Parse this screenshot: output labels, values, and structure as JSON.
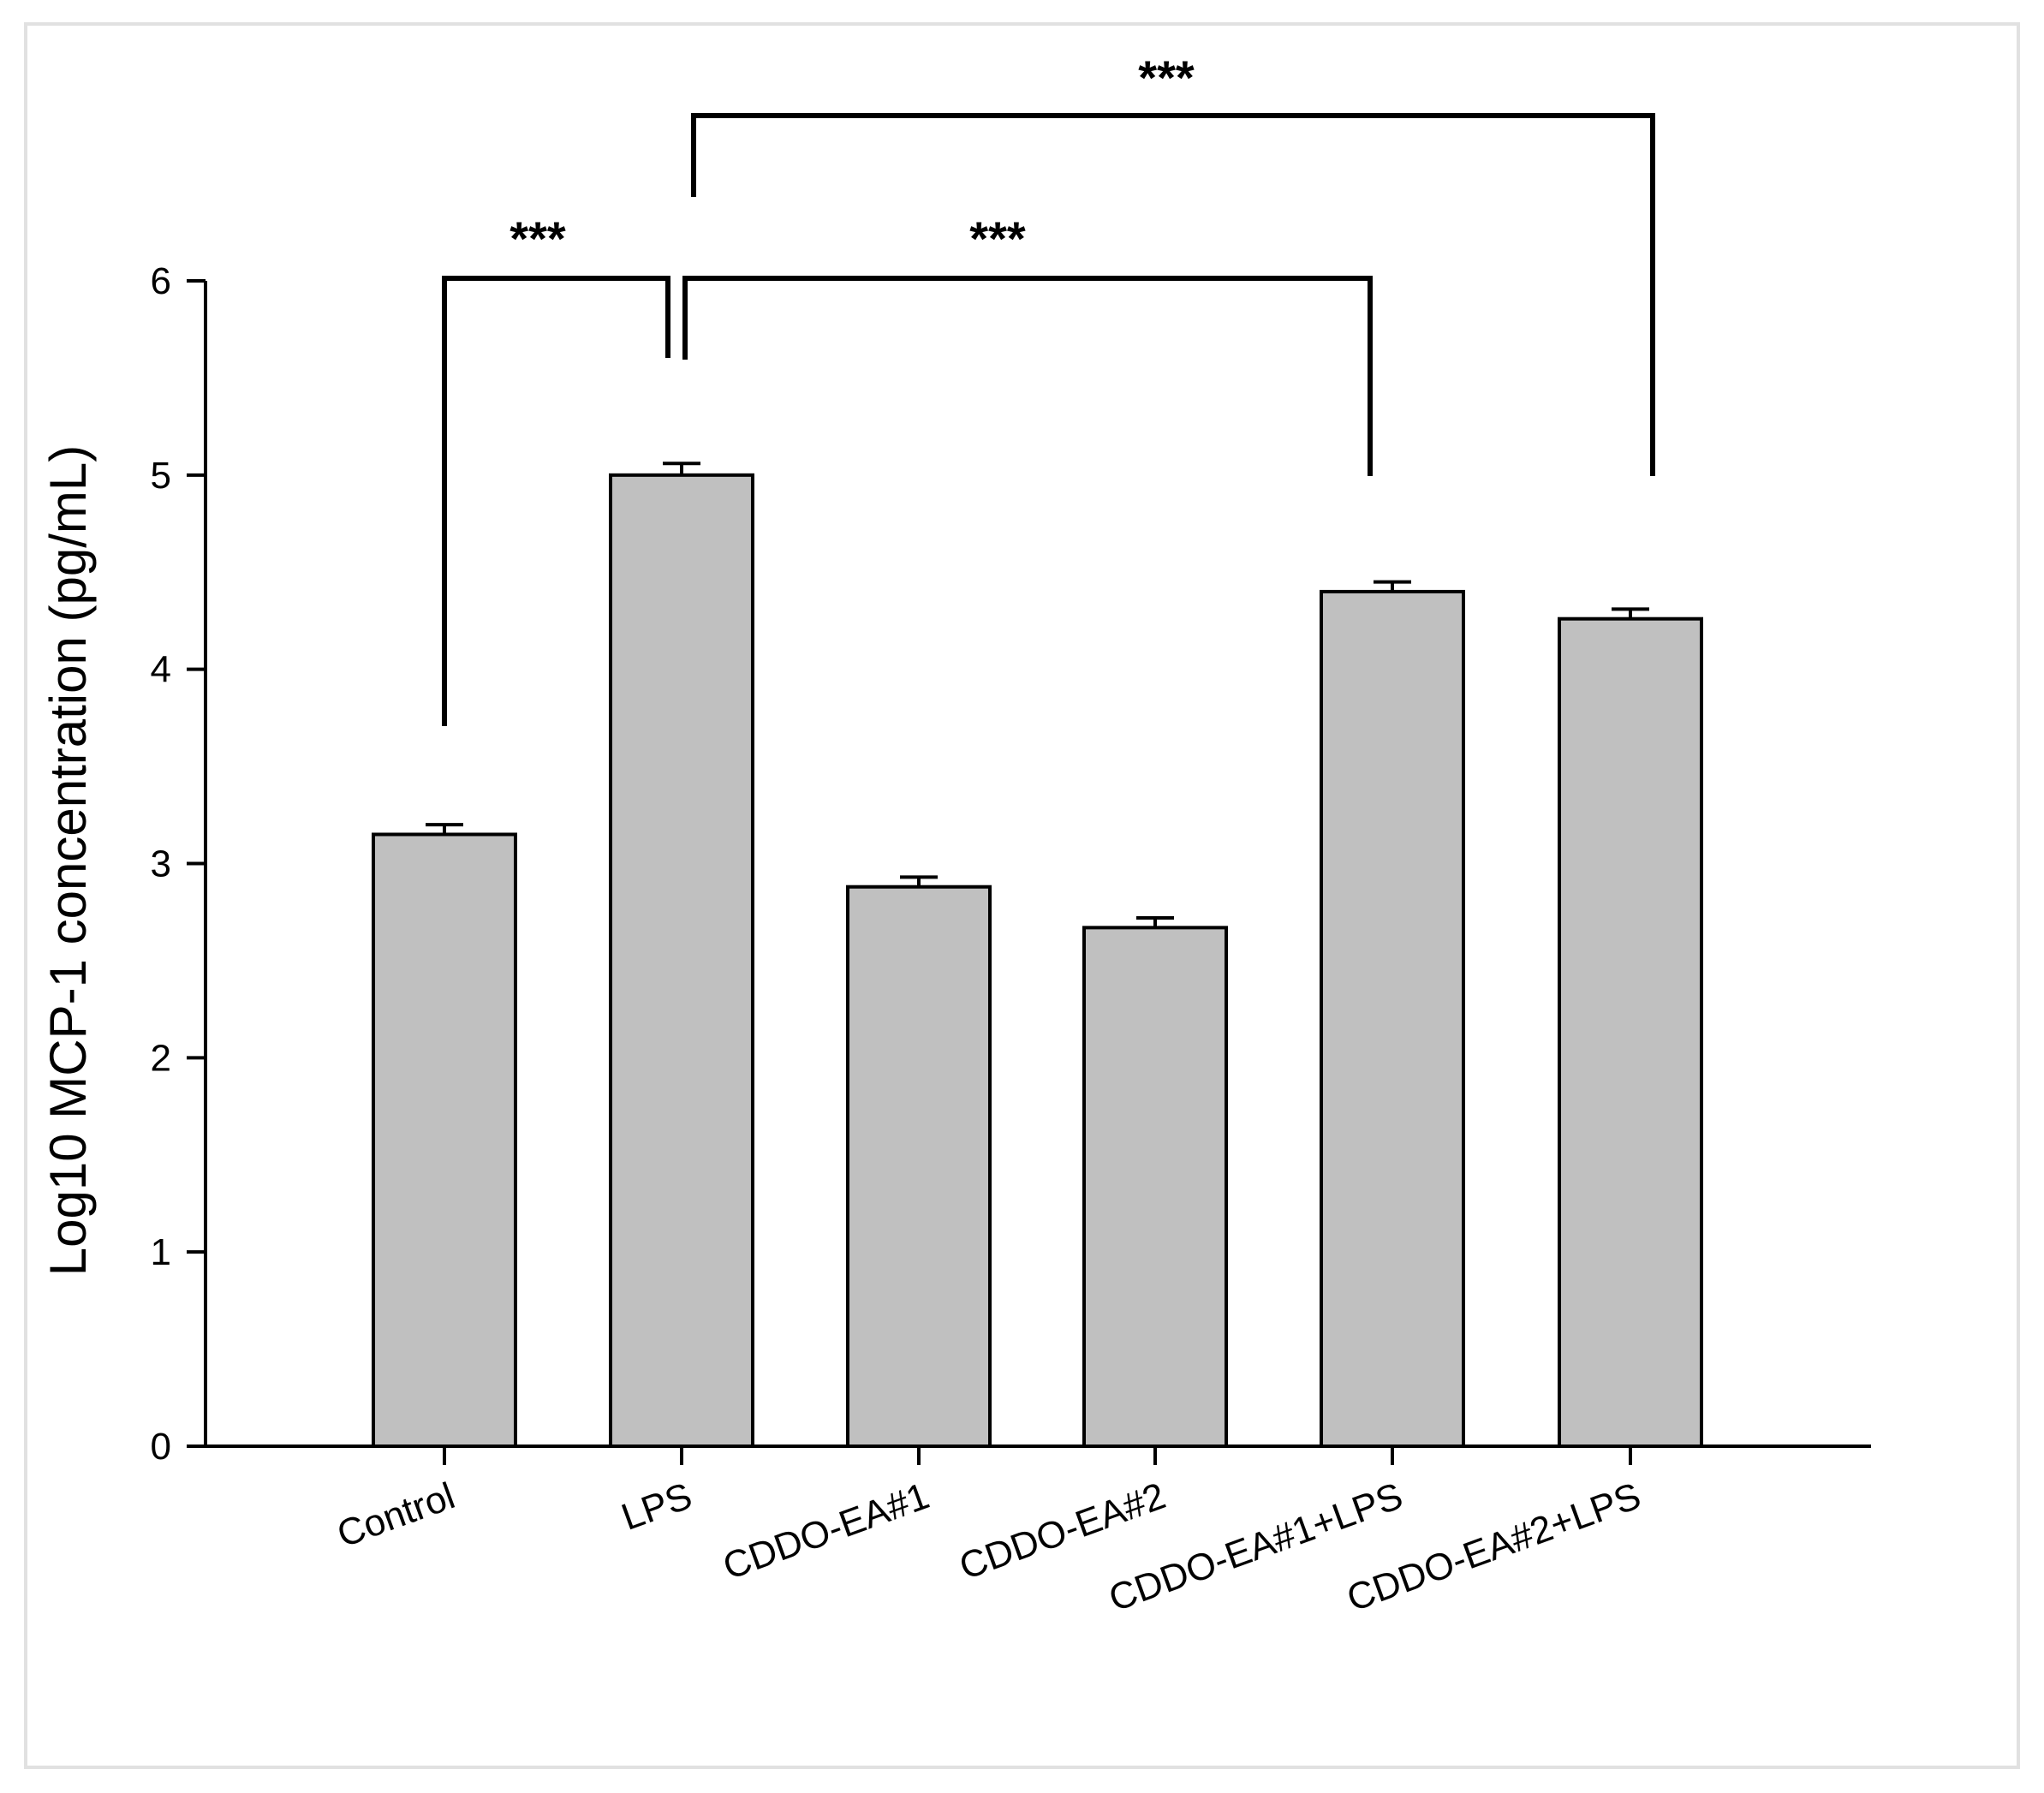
{
  "chart_data": {
    "type": "bar",
    "title": "",
    "xlabel": "",
    "ylabel": "Log10 MCP-1 concentration (pg/mL)",
    "ylim": [
      0,
      6
    ],
    "yticks": [
      "0",
      "1",
      "2",
      "3",
      "4",
      "5",
      "6"
    ],
    "categories": [
      "Control",
      "LPS",
      "CDDO-EA#1",
      "CDDO-EA#2",
      "CDDO-EA#1+LPS",
      "CDDO-EA#2+LPS"
    ],
    "values": [
      3.15,
      5.0,
      2.88,
      2.67,
      4.4,
      4.26
    ],
    "errors": [
      0.05,
      0.06,
      0.05,
      0.05,
      0.05,
      0.05
    ],
    "grid": false,
    "legend": "none",
    "bar_color": "#c0c0c0",
    "edge_color": "#000000",
    "significance": [
      {
        "from": 0,
        "to": 1,
        "label": "***"
      },
      {
        "from": 1,
        "to": 4,
        "label": "***"
      },
      {
        "from": 1,
        "to": 5,
        "label": "***"
      }
    ]
  }
}
